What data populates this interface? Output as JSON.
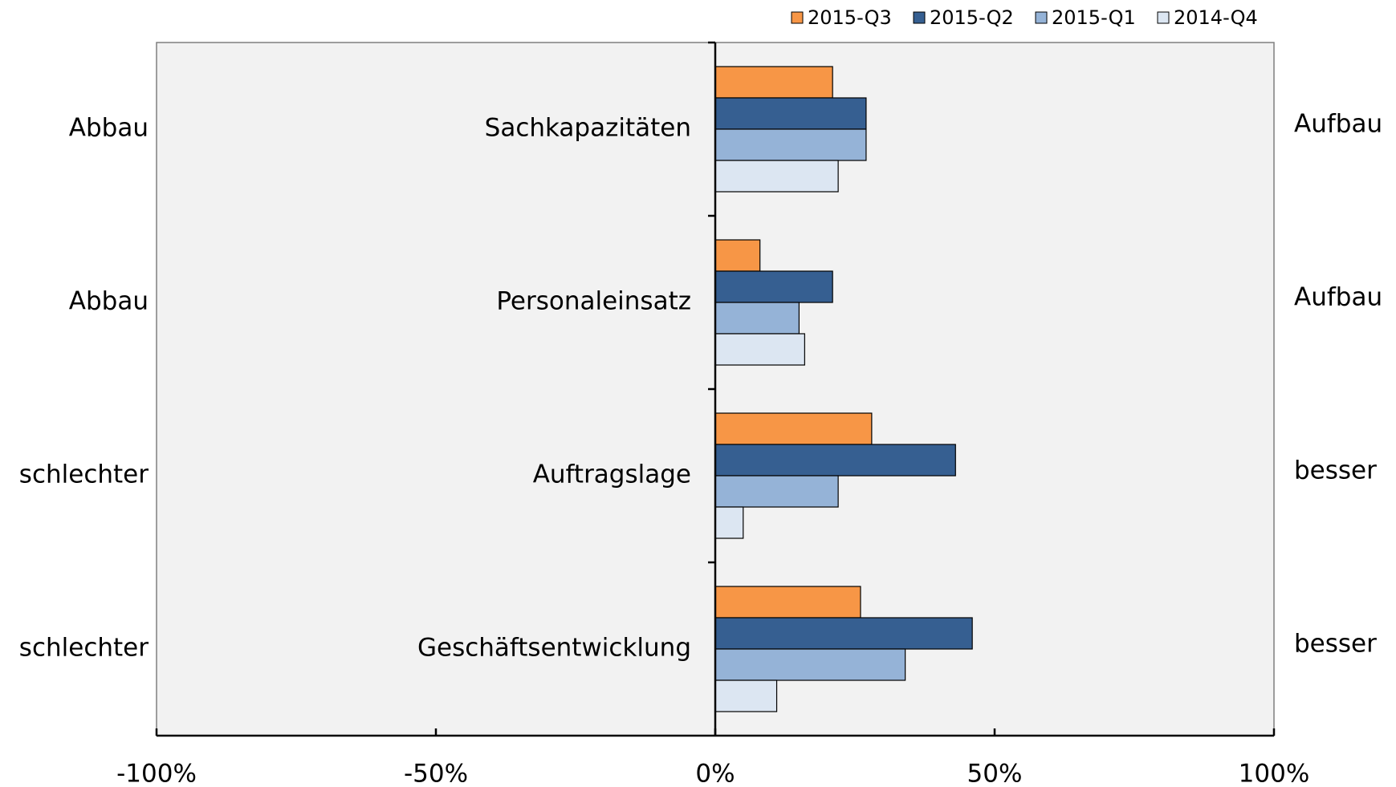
{
  "chart_data": {
    "type": "bar",
    "orientation": "horizontal",
    "categories": [
      "Sachkapazitäten",
      "Personaleinsatz",
      "Auftragslage",
      "Geschäftsentwicklung"
    ],
    "left_labels": [
      "Abbau",
      "Abbau",
      "schlechter",
      "schlechter"
    ],
    "right_labels": [
      "Aufbau",
      "Aufbau",
      "besser",
      "besser"
    ],
    "series": [
      {
        "name": "2015-Q3",
        "color": "#f79646",
        "values": [
          21,
          8,
          28,
          26
        ]
      },
      {
        "name": "2015-Q2",
        "color": "#365f91",
        "values": [
          27,
          21,
          43,
          46
        ]
      },
      {
        "name": "2015-Q1",
        "color": "#95b3d7",
        "values": [
          27,
          15,
          22,
          34
        ]
      },
      {
        "name": "2014-Q4",
        "color": "#dce6f2",
        "values": [
          22,
          16,
          5,
          11
        ]
      }
    ],
    "xlim": [
      -100,
      100
    ],
    "xticks": [
      {
        "value": -100,
        "label": "-100%"
      },
      {
        "value": -50,
        "label": "-50%"
      },
      {
        "value": 0,
        "label": "0%"
      },
      {
        "value": 50,
        "label": "50%"
      },
      {
        "value": 100,
        "label": "100%"
      }
    ],
    "legend": "top-right",
    "grid": false
  }
}
